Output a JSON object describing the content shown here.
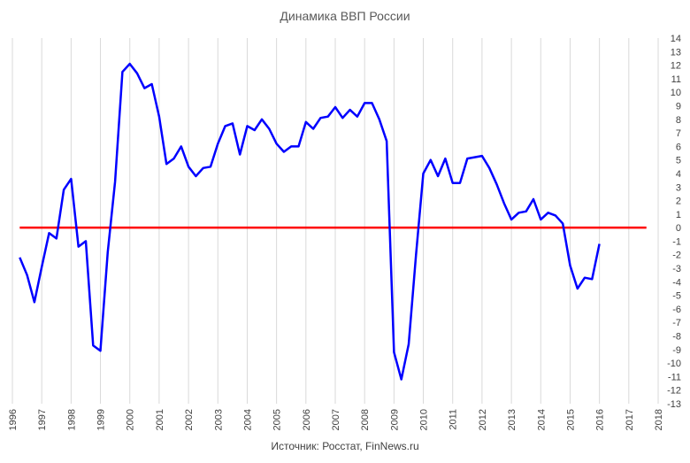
{
  "chart_data": {
    "type": "line",
    "title": "Динамика ВВП России",
    "source_note": "Источник: Росстат, FinNews.ru",
    "xlabel": "",
    "ylabel": "",
    "xlim": [
      1996,
      2018
    ],
    "ylim": [
      -13,
      14
    ],
    "x_ticks": [
      "1996",
      "1997",
      "1998",
      "1999",
      "2000",
      "2001",
      "2002",
      "2003",
      "2004",
      "2005",
      "2006",
      "2007",
      "2008",
      "2009",
      "2010",
      "2011",
      "2012",
      "2013",
      "2014",
      "2015",
      "2016",
      "2017",
      "2018"
    ],
    "y_ticks": [
      "14",
      "13",
      "12",
      "11",
      "10",
      "9",
      "8",
      "7",
      "6",
      "5",
      "4",
      "3",
      "2",
      "1",
      "0",
      "-1",
      "-2",
      "-3",
      "-4",
      "-5",
      "-6",
      "-7",
      "-8",
      "-9",
      "-10",
      "-11",
      "-12",
      "-13"
    ],
    "y_axis_side": "right",
    "grid": {
      "vertical": true,
      "horizontal": false
    },
    "legend": "none",
    "series": [
      {
        "color": "#0000ff",
        "x": [
          1996.25,
          1996.5,
          1996.75,
          1997.0,
          1997.25,
          1997.5,
          1997.75,
          1998.0,
          1998.25,
          1998.5,
          1998.75,
          1999.0,
          1999.25,
          1999.5,
          1999.75,
          2000.0,
          2000.25,
          2000.5,
          2000.75,
          2001.0,
          2001.25,
          2001.5,
          2001.75,
          2002.0,
          2002.25,
          2002.5,
          2002.75,
          2003.0,
          2003.25,
          2003.5,
          2003.75,
          2004.0,
          2004.25,
          2004.5,
          2004.75,
          2005.0,
          2005.25,
          2005.5,
          2005.75,
          2006.0,
          2006.25,
          2006.5,
          2006.75,
          2007.0,
          2007.25,
          2007.5,
          2007.75,
          2008.0,
          2008.25,
          2008.5,
          2008.75,
          2009.0,
          2009.25,
          2009.5,
          2009.75,
          2010.0,
          2010.25,
          2010.5,
          2010.75,
          2011.0,
          2011.25,
          2011.5,
          2011.75,
          2012.0,
          2012.25,
          2012.5,
          2012.75,
          2013.0,
          2013.25,
          2013.5,
          2013.75,
          2014.0,
          2014.25,
          2014.5,
          2014.75,
          2015.0,
          2015.25,
          2015.5,
          2015.75,
          2016.0
        ],
        "y": [
          -2.2,
          -3.5,
          -5.5,
          -2.9,
          -0.4,
          -0.8,
          2.8,
          3.6,
          -1.4,
          -1.0,
          -8.7,
          -9.1,
          -1.8,
          3.4,
          11.5,
          12.1,
          11.4,
          10.3,
          10.6,
          8.2,
          4.7,
          5.1,
          6.0,
          4.5,
          3.8,
          4.4,
          4.5,
          6.2,
          7.5,
          7.7,
          5.4,
          7.5,
          7.2,
          8.0,
          7.3,
          6.2,
          5.6,
          6.0,
          6.0,
          7.8,
          7.3,
          8.1,
          8.2,
          8.9,
          8.1,
          8.7,
          8.2,
          9.2,
          9.2,
          8.0,
          6.4,
          -9.2,
          -11.2,
          -8.6,
          -2.0,
          4.0,
          5.0,
          3.8,
          5.1,
          3.3,
          3.3,
          5.1,
          5.2,
          5.3,
          4.4,
          3.2,
          1.8,
          0.6,
          1.1,
          1.2,
          2.1,
          0.6,
          1.1,
          0.9,
          0.3,
          -2.8,
          -4.5,
          -3.7,
          -3.8,
          -1.2
        ]
      }
    ],
    "reference_line": {
      "y": 0,
      "color": "#ff0000"
    }
  }
}
